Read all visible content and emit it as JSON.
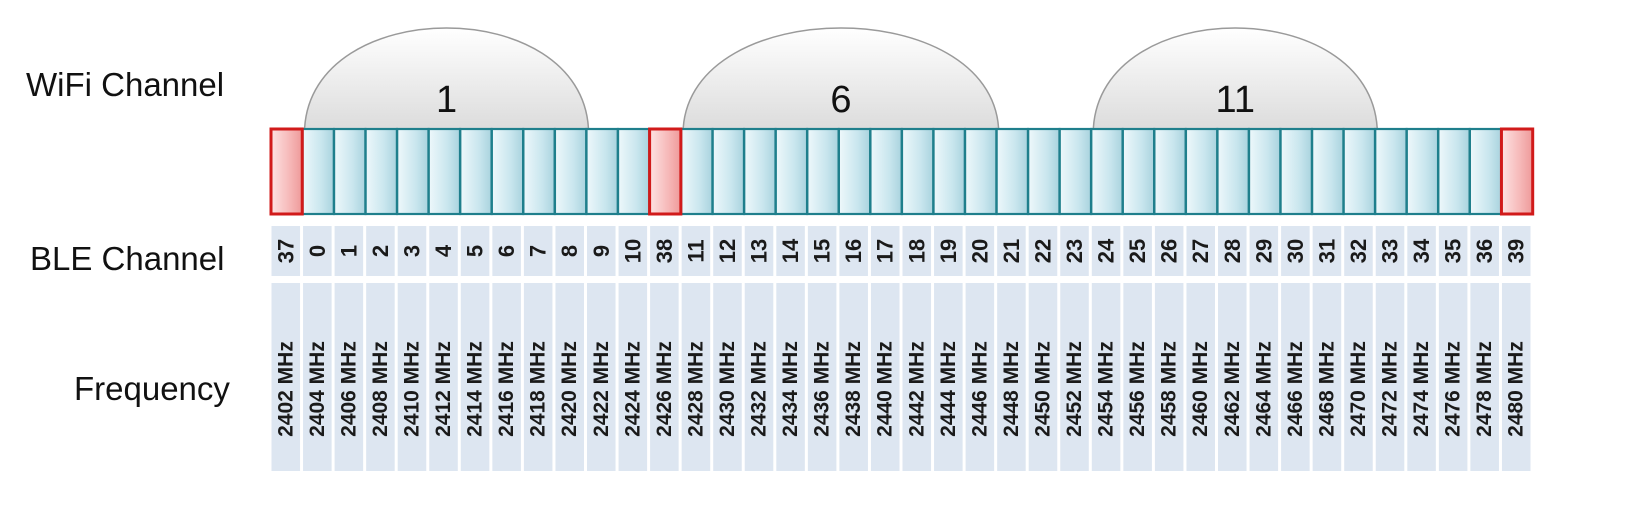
{
  "labels": {
    "wifi_channel": "WiFi Channel",
    "ble_channel": "BLE Channel",
    "frequency": "Frequency"
  },
  "colors": {
    "data_channel_fill": "#c9e6ee",
    "data_channel_stroke": "#1f7f8c",
    "advertising_channel_fill": "#f6b8b8",
    "advertising_channel_stroke": "#d11a1a",
    "wifi_arc_fill": "#e9e9e9",
    "wifi_arc_stroke": "#9a9a9a",
    "label_cell_fill": "#dde6f1"
  },
  "wifi_channels": [
    {
      "label": "1",
      "start_ble": "0",
      "end_ble": "8"
    },
    {
      "label": "6",
      "start_ble": "11",
      "end_ble": "20"
    },
    {
      "label": "11",
      "start_ble": "24",
      "end_ble": "32"
    }
  ],
  "ble_channels": [
    {
      "channel": "37",
      "frequency": "2402 MHz",
      "advertising": true
    },
    {
      "channel": "0",
      "frequency": "2404 MHz",
      "advertising": false
    },
    {
      "channel": "1",
      "frequency": "2406 MHz",
      "advertising": false
    },
    {
      "channel": "2",
      "frequency": "2408 MHz",
      "advertising": false
    },
    {
      "channel": "3",
      "frequency": "2410 MHz",
      "advertising": false
    },
    {
      "channel": "4",
      "frequency": "2412 MHz",
      "advertising": false
    },
    {
      "channel": "5",
      "frequency": "2414 MHz",
      "advertising": false
    },
    {
      "channel": "6",
      "frequency": "2416 MHz",
      "advertising": false
    },
    {
      "channel": "7",
      "frequency": "2418 MHz",
      "advertising": false
    },
    {
      "channel": "8",
      "frequency": "2420 MHz",
      "advertising": false
    },
    {
      "channel": "9",
      "frequency": "2422 MHz",
      "advertising": false
    },
    {
      "channel": "10",
      "frequency": "2424 MHz",
      "advertising": false
    },
    {
      "channel": "38",
      "frequency": "2426 MHz",
      "advertising": true
    },
    {
      "channel": "11",
      "frequency": "2428 MHz",
      "advertising": false
    },
    {
      "channel": "12",
      "frequency": "2430 MHz",
      "advertising": false
    },
    {
      "channel": "13",
      "frequency": "2432 MHz",
      "advertising": false
    },
    {
      "channel": "14",
      "frequency": "2434 MHz",
      "advertising": false
    },
    {
      "channel": "15",
      "frequency": "2436 MHz",
      "advertising": false
    },
    {
      "channel": "16",
      "frequency": "2438 MHz",
      "advertising": false
    },
    {
      "channel": "17",
      "frequency": "2440 MHz",
      "advertising": false
    },
    {
      "channel": "18",
      "frequency": "2442 MHz",
      "advertising": false
    },
    {
      "channel": "19",
      "frequency": "2444 MHz",
      "advertising": false
    },
    {
      "channel": "20",
      "frequency": "2446 MHz",
      "advertising": false
    },
    {
      "channel": "21",
      "frequency": "2448 MHz",
      "advertising": false
    },
    {
      "channel": "22",
      "frequency": "2450 MHz",
      "advertising": false
    },
    {
      "channel": "23",
      "frequency": "2452 MHz",
      "advertising": false
    },
    {
      "channel": "24",
      "frequency": "2454 MHz",
      "advertising": false
    },
    {
      "channel": "25",
      "frequency": "2456 MHz",
      "advertising": false
    },
    {
      "channel": "26",
      "frequency": "2458 MHz",
      "advertising": false
    },
    {
      "channel": "27",
      "frequency": "2460 MHz",
      "advertising": false
    },
    {
      "channel": "28",
      "frequency": "2462 MHz",
      "advertising": false
    },
    {
      "channel": "29",
      "frequency": "2464 MHz",
      "advertising": false
    },
    {
      "channel": "30",
      "frequency": "2466 MHz",
      "advertising": false
    },
    {
      "channel": "31",
      "frequency": "2468 MHz",
      "advertising": false
    },
    {
      "channel": "32",
      "frequency": "2470 MHz",
      "advertising": false
    },
    {
      "channel": "33",
      "frequency": "2472 MHz",
      "advertising": false
    },
    {
      "channel": "34",
      "frequency": "2474 MHz",
      "advertising": false
    },
    {
      "channel": "35",
      "frequency": "2476 MHz",
      "advertising": false
    },
    {
      "channel": "36",
      "frequency": "2478 MHz",
      "advertising": false
    },
    {
      "channel": "39",
      "frequency": "2480 MHz",
      "advertising": true
    }
  ]
}
